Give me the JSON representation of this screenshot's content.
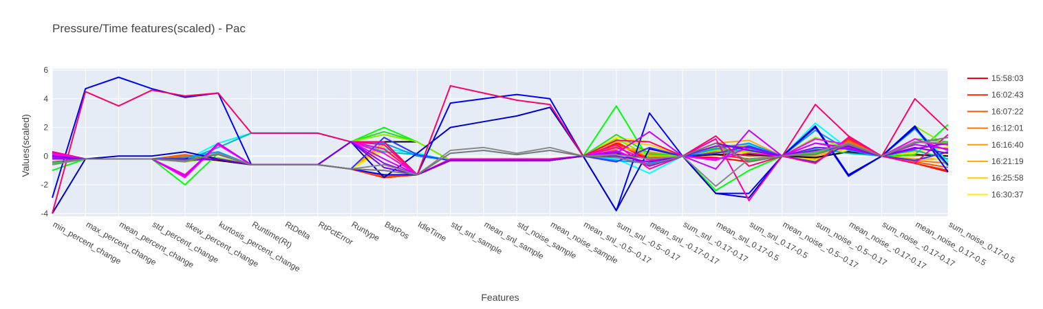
{
  "chart_data": {
    "type": "line",
    "title": "Pressure/Time features(scaled) - Pac",
    "xlabel": "Features",
    "ylabel": "Values(scaled)",
    "ylim": [
      -4.2,
      6.1
    ],
    "yticks": [
      -4,
      -2,
      0,
      2,
      4,
      6
    ],
    "grid": true,
    "legend_position": "right",
    "categories": [
      "min_percent_change",
      "max_percent_change",
      "mean_percent_change",
      "std_percent_change",
      "skew_percent_change",
      "kurtosis_percent_change",
      "Runtime(Rt)",
      "RtDelta",
      "RtPctError",
      "Runtype",
      "BatPos",
      "IdleTime",
      "std_snl_sample",
      "mean_snl_sample",
      "std_noise_sample",
      "mean_noise_sample",
      "mean_snl_-0.5--0.17",
      "sum_snl_-0.5--0.17",
      "mean_snl_-0.17-0.17",
      "sum_snl_-0.17-0.17",
      "mean_snl_0.17-0.5",
      "sum_snl_0.17-0.5",
      "mean_noise_-0.5--0.17",
      "sum_noise_-0.5--0.17",
      "mean_noise_-0.17-0.17",
      "sum_noise_-0.17-0.17",
      "mean_noise_0.17-0.5",
      "sum_noise_0.17-0.5"
    ],
    "series": [
      {
        "name": "15:58:03",
        "color": "#ff0000",
        "values": [
          0.3,
          -0.2,
          -0.2,
          -0.2,
          -0.1,
          -0.3,
          -0.6,
          -0.6,
          -0.6,
          -0.9,
          -1.5,
          -1.3,
          -0.3,
          -0.3,
          -0.3,
          -0.3,
          0,
          0.9,
          -0.3,
          0,
          -0.1,
          -0.4,
          0,
          -0.5,
          1.3,
          0,
          -0.5,
          -1.1
        ]
      },
      {
        "name": "16:02:43",
        "color": "#ff2a00",
        "values": [
          0.2,
          -0.2,
          -0.2,
          -0.2,
          0.0,
          -0.3,
          -0.6,
          -0.6,
          -0.6,
          -0.9,
          -1.5,
          -1.3,
          -0.3,
          -0.3,
          -0.3,
          -0.3,
          0,
          1.0,
          -0.2,
          0,
          0.1,
          -0.2,
          0,
          -0.5,
          1.2,
          0,
          -0.5,
          -1.0
        ]
      },
      {
        "name": "16:07:22",
        "color": "#ff5500",
        "values": [
          0.2,
          -0.2,
          -0.2,
          -0.2,
          0.1,
          -0.2,
          -0.6,
          -0.6,
          -0.6,
          -0.9,
          -1.4,
          -1.3,
          -0.3,
          -0.3,
          -0.3,
          -0.3,
          0,
          0.8,
          -0.1,
          0,
          0.3,
          0.0,
          0,
          -0.4,
          1.1,
          0,
          -0.4,
          -0.8
        ]
      },
      {
        "name": "16:12:01",
        "color": "#ff7700",
        "values": [
          0.1,
          -0.2,
          -0.2,
          -0.2,
          0.0,
          -0.3,
          -0.6,
          -0.6,
          -0.6,
          -0.9,
          -1.3,
          -1.3,
          -0.3,
          -0.3,
          -0.3,
          -0.3,
          0,
          0.7,
          0.1,
          0,
          0.5,
          0.4,
          0,
          -0.3,
          1.0,
          0,
          -0.3,
          -0.5
        ]
      },
      {
        "name": "16:16:40",
        "color": "#ff9900",
        "values": [
          0.1,
          -0.2,
          -0.2,
          -0.2,
          -0.1,
          -0.3,
          -0.6,
          -0.6,
          -0.6,
          -0.9,
          1.0,
          -1.3,
          -0.3,
          -0.3,
          -0.3,
          -0.3,
          0,
          0.6,
          0.3,
          0,
          0.7,
          0.8,
          0,
          -0.2,
          0.8,
          0,
          -0.2,
          -0.2
        ]
      },
      {
        "name": "16:21:19",
        "color": "#ffaa00",
        "values": [
          0.0,
          -0.2,
          -0.2,
          -0.2,
          -0.1,
          -0.3,
          -0.6,
          -0.6,
          -0.6,
          -0.9,
          0.8,
          -1.3,
          -0.3,
          -0.3,
          -0.3,
          -0.3,
          0,
          0.5,
          0.5,
          0,
          0.9,
          1.1,
          0,
          0.0,
          0.6,
          0,
          0.0,
          0.2
        ]
      },
      {
        "name": "16:25:58",
        "color": "#ffcc00",
        "values": [
          -0.1,
          -0.2,
          -0.2,
          -0.2,
          -0.2,
          -0.3,
          -0.6,
          -0.6,
          -0.6,
          -0.9,
          0.6,
          -1.3,
          -0.3,
          -0.3,
          -0.3,
          -0.3,
          0,
          1.0,
          0.8,
          0,
          0.6,
          0.7,
          0,
          0.2,
          0.4,
          0,
          0.3,
          0.6
        ]
      },
      {
        "name": "16:30:37",
        "color": "#ffee00",
        "values": [
          -0.1,
          -0.2,
          -0.2,
          -0.2,
          -0.2,
          -0.3,
          -0.6,
          -0.6,
          -0.6,
          -0.9,
          0.4,
          -1.3,
          -0.3,
          -0.3,
          -0.3,
          -0.3,
          0,
          1.3,
          1.0,
          0,
          0.4,
          0.2,
          0,
          -0.3,
          0.5,
          0,
          0.2,
          -0.4
        ]
      },
      {
        "color": "#000000",
        "values": [
          0.3,
          -0.2,
          -0.2,
          -0.2,
          -0.1,
          -0.3,
          -0.6,
          -0.6,
          -0.6,
          1.0,
          1.0,
          1.0,
          -0.3,
          -0.3,
          -0.3,
          -0.3,
          0,
          0.2,
          -0.2,
          0,
          0.1,
          0.1,
          0,
          -0.1,
          0.3,
          0,
          0.1,
          0.0
        ]
      },
      {
        "color": "#00ff00",
        "values": [
          -1.0,
          -0.2,
          -0.2,
          -0.2,
          -2.0,
          0.2,
          -0.6,
          -0.6,
          -0.6,
          1.0,
          2.0,
          1.0,
          -0.3,
          -0.3,
          -0.3,
          -0.3,
          0,
          3.5,
          -0.3,
          0,
          -2.4,
          -1.0,
          0,
          0.3,
          0.6,
          0,
          0.1,
          2.2
        ]
      },
      {
        "color": "#22dd22",
        "values": [
          -0.5,
          -0.2,
          -0.2,
          -0.2,
          -0.3,
          0.2,
          -0.6,
          -0.6,
          -0.6,
          1.0,
          1.7,
          1.0,
          -0.3,
          -0.3,
          -0.3,
          -0.3,
          0,
          1.5,
          0.2,
          0,
          0.6,
          -0.3,
          0,
          0.2,
          0.8,
          0,
          1.2,
          1.0
        ]
      },
      {
        "color": "#88ee00",
        "values": [
          -0.2,
          -0.2,
          -0.2,
          -0.2,
          -0.4,
          -0.1,
          -0.6,
          -0.6,
          -0.6,
          1.0,
          1.5,
          1.0,
          -0.3,
          -0.3,
          -0.3,
          -0.3,
          0,
          1.2,
          0.0,
          0,
          0.4,
          0.3,
          0,
          1.3,
          0.5,
          0,
          2.1,
          0.7
        ]
      },
      {
        "color": "#00ffff",
        "values": [
          0.2,
          -0.2,
          -0.2,
          -0.2,
          -0.3,
          0.9,
          1.6,
          1.6,
          1.6,
          1.0,
          0.5,
          0.2,
          -0.3,
          -0.3,
          -0.3,
          -0.3,
          0,
          -0.2,
          -1.2,
          0,
          -0.3,
          0.8,
          0,
          2.3,
          0.5,
          0,
          2.0,
          -0.4
        ]
      },
      {
        "color": "#00bbbb",
        "values": [
          0.0,
          -0.2,
          -0.2,
          -0.2,
          -0.3,
          0.6,
          1.6,
          1.6,
          1.6,
          1.0,
          0.3,
          0.1,
          -0.3,
          -0.3,
          -0.3,
          -0.3,
          0,
          0.3,
          -0.6,
          0,
          0.2,
          0.5,
          0,
          0.5,
          0.2,
          0,
          0.4,
          -0.2
        ]
      },
      {
        "color": "#0099ff",
        "values": [
          0.1,
          -0.2,
          -0.2,
          -0.2,
          -0.1,
          0.3,
          -0.6,
          -0.6,
          -0.6,
          1.0,
          0.9,
          0.0,
          -0.3,
          -0.3,
          -0.3,
          -0.3,
          0,
          -0.3,
          -0.5,
          0,
          0.5,
          0.9,
          0,
          1.8,
          0.4,
          0,
          1.9,
          -0.7
        ]
      },
      {
        "color": "#0000ff",
        "values": [
          -2.9,
          4.7,
          5.5,
          4.7,
          4.1,
          4.4,
          -0.6,
          -0.6,
          -0.6,
          -0.9,
          -1.3,
          -1.3,
          3.7,
          4.0,
          4.3,
          4.0,
          0,
          -3.8,
          3.0,
          0,
          -2.6,
          -2.6,
          0,
          2.0,
          -1.4,
          0,
          2.1,
          -1.1
        ]
      },
      {
        "color": "#0000cc",
        "values": [
          -4.0,
          -0.2,
          0.0,
          0.0,
          0.3,
          -0.2,
          -0.6,
          -0.6,
          -0.6,
          1.0,
          -1.5,
          0.2,
          2.0,
          2.4,
          2.8,
          3.4,
          0,
          -3.8,
          0.5,
          0,
          -2.6,
          -2.9,
          0,
          2.1,
          -1.3,
          0,
          2.0,
          -0.6
        ]
      },
      {
        "color": "#3333ff",
        "values": [
          0.0,
          -0.2,
          -0.2,
          -0.2,
          -0.2,
          -0.2,
          -0.6,
          -0.6,
          -0.6,
          -0.9,
          1.3,
          0.1,
          -0.3,
          -0.3,
          -0.3,
          -0.3,
          0,
          -0.4,
          0.6,
          0,
          0.2,
          0.7,
          0,
          -0.4,
          0.9,
          0,
          -0.3,
          0.3
        ]
      },
      {
        "color": "#ff0066",
        "values": [
          -4.0,
          4.5,
          3.5,
          4.6,
          4.2,
          4.4,
          1.6,
          1.6,
          1.6,
          1.0,
          1.0,
          -1.3,
          4.9,
          4.4,
          3.9,
          3.6,
          0,
          1.1,
          1.0,
          0,
          1.4,
          -0.7,
          0,
          3.6,
          1.4,
          0,
          4.0,
          1.8
        ]
      },
      {
        "color": "#ff0099",
        "values": [
          0.3,
          -0.2,
          -0.2,
          -0.2,
          -0.2,
          -0.2,
          -0.6,
          -0.6,
          -0.6,
          1.0,
          0.8,
          -1.3,
          -0.2,
          -0.2,
          -0.2,
          -0.2,
          0,
          0.8,
          -0.9,
          0,
          1.2,
          -3.1,
          0,
          -0.5,
          1.3,
          0,
          -0.5,
          1.5
        ]
      },
      {
        "color": "#ff00cc",
        "values": [
          0.2,
          -0.2,
          -0.2,
          -0.2,
          -1.3,
          0.8,
          -0.6,
          -0.6,
          -0.6,
          1.0,
          0.5,
          -1.3,
          -0.3,
          -0.3,
          -0.3,
          -0.3,
          0,
          0.6,
          -0.3,
          0,
          -0.2,
          0.2,
          0,
          0.9,
          0.5,
          0,
          1.0,
          0.8
        ]
      },
      {
        "color": "#ff00ff",
        "values": [
          0.1,
          -0.2,
          -0.2,
          -0.2,
          -1.5,
          0.8,
          -0.6,
          -0.6,
          -0.6,
          1.0,
          0.2,
          -1.3,
          -0.3,
          -0.3,
          -0.3,
          -0.3,
          0,
          0.4,
          -0.6,
          0,
          -0.3,
          0.6,
          0,
          1.2,
          0.8,
          0,
          1.2,
          0.4
        ]
      },
      {
        "color": "#cc00ff",
        "values": [
          -0.1,
          -0.2,
          -0.2,
          -0.2,
          -1.4,
          0.9,
          -0.6,
          -0.6,
          -0.6,
          1.0,
          -0.2,
          -1.3,
          -0.3,
          -0.3,
          -0.3,
          -0.3,
          0,
          0.2,
          1.7,
          0,
          -0.9,
          1.8,
          0,
          0.9,
          0.6,
          0,
          0.8,
          0.5
        ]
      },
      {
        "color": "#9900ff",
        "values": [
          -0.2,
          -0.2,
          -0.2,
          -0.2,
          -0.3,
          -0.2,
          -0.6,
          -0.6,
          -0.6,
          1.0,
          -0.5,
          -1.3,
          -0.3,
          -0.3,
          -0.3,
          -0.3,
          0,
          0.3,
          -0.7,
          0,
          0.7,
          0.6,
          0,
          0.6,
          0.5,
          0,
          0.5,
          0.9
        ]
      },
      {
        "color": "#7700ee",
        "values": [
          0.0,
          -0.2,
          -0.2,
          -0.2,
          -0.2,
          -0.2,
          -0.6,
          -0.6,
          -0.6,
          1.0,
          -0.8,
          -1.3,
          -0.3,
          -0.3,
          -0.3,
          -0.3,
          0,
          0.0,
          -0.4,
          0,
          0.9,
          0.4,
          0,
          0.4,
          0.7,
          0,
          0.6,
          0.2
        ]
      },
      {
        "color": "#888888",
        "values": [
          -0.6,
          -0.2,
          -0.2,
          -0.2,
          -0.4,
          0.2,
          -0.6,
          -0.6,
          -0.6,
          -0.9,
          -0.6,
          -1.3,
          0.4,
          0.6,
          0.2,
          0.6,
          0,
          0.1,
          -0.2,
          0,
          -2.1,
          -0.2,
          0,
          0.3,
          0.9,
          0,
          1.0,
          0.9
        ]
      },
      {
        "color": "#777777",
        "values": [
          -0.4,
          -0.2,
          -0.2,
          -0.2,
          -0.3,
          0.1,
          -0.6,
          -0.6,
          -0.6,
          -0.9,
          -1.0,
          -1.3,
          0.2,
          0.4,
          0.1,
          0.4,
          0,
          -0.1,
          -0.6,
          0,
          0.9,
          -0.4,
          0,
          0.1,
          0.8,
          0,
          0.9,
          1.3
        ]
      }
    ]
  }
}
